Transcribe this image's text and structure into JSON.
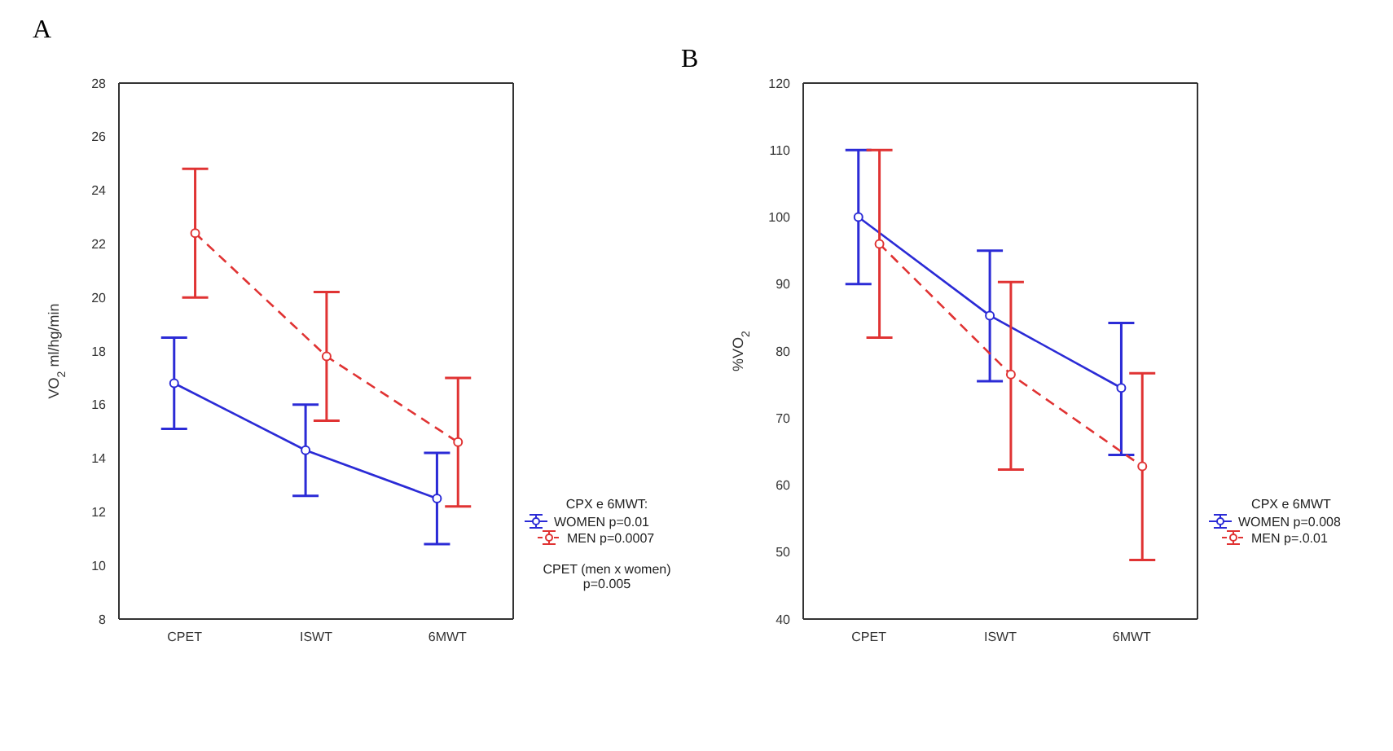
{
  "chart_data": [
    {
      "type": "line",
      "title": "A",
      "categories": [
        "CPET",
        "ISWT",
        "6MWT"
      ],
      "ylabel": "VO$_{2}$ ml/hg/min",
      "ylim": [
        8,
        28
      ],
      "yticks": [
        8,
        10,
        12,
        14,
        16,
        18,
        20,
        22,
        24,
        26,
        28
      ],
      "legend": "bottom right",
      "legend_title": "CPX e 6MWT:",
      "marker": "circle",
      "annotations": [
        "CPET (men x women)\np=0.005"
      ],
      "series": [
        {
          "name": "WOMEN p=0.01",
          "color": "#2b2bd6",
          "line_style": "solid",
          "values": [
            16.8,
            14.3,
            12.5
          ],
          "errors": [
            [
              15.1,
              18.5
            ],
            [
              12.6,
              16.0
            ],
            [
              10.8,
              14.2
            ]
          ]
        },
        {
          "name": "MEN p=0.0007",
          "color": "#e03333",
          "line_style": "dashed",
          "values": [
            22.4,
            17.8,
            14.6
          ],
          "errors": [
            [
              20.0,
              24.8
            ],
            [
              15.4,
              20.2
            ],
            [
              12.2,
              17.0
            ]
          ]
        }
      ]
    },
    {
      "type": "line",
      "title": "B",
      "categories": [
        "CPET",
        "ISWT",
        "6MWT"
      ],
      "ylabel": "%VO$_{2}$",
      "ylim": [
        40,
        120
      ],
      "yticks": [
        40,
        50,
        60,
        70,
        80,
        90,
        100,
        110,
        120
      ],
      "legend": "bottom right",
      "legend_title": "CPX e 6MWT",
      "marker": "circle",
      "series": [
        {
          "name": "WOMEN p=0.008",
          "color": "#2b2bd6",
          "line_style": "solid",
          "values": [
            100,
            85.3,
            74.5
          ],
          "errors": [
            [
              90,
              110
            ],
            [
              75.5,
              95
            ],
            [
              64.5,
              84.2
            ]
          ]
        },
        {
          "name": "MEN p=.0.01",
          "color": "#e03333",
          "line_style": "dashed",
          "values": [
            96,
            76.5,
            62.8
          ],
          "errors": [
            [
              82,
              110
            ],
            [
              62.3,
              90.3
            ],
            [
              48.8,
              76.7
            ]
          ]
        }
      ]
    }
  ]
}
